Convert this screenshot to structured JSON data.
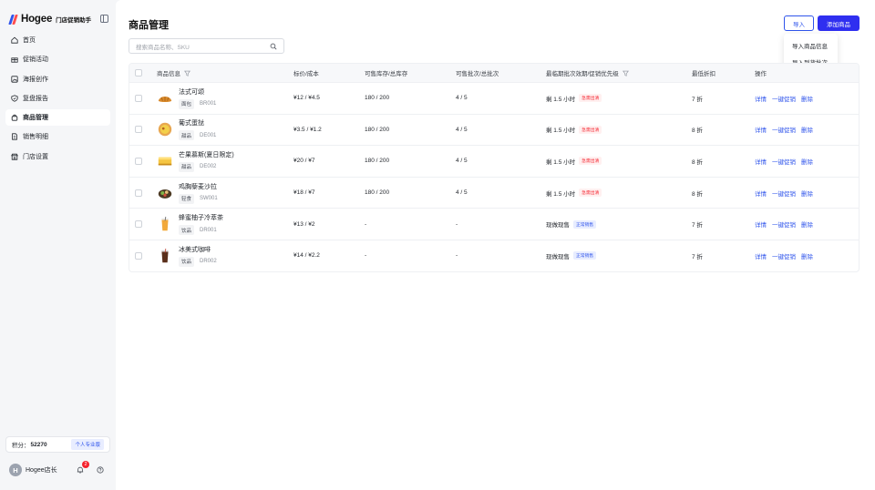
{
  "brand": {
    "logo_text": "Hogee",
    "app_name": "门店促销助手"
  },
  "sidebar": {
    "items": [
      {
        "label": "首页",
        "icon": "home-icon",
        "active": false
      },
      {
        "label": "促销活动",
        "icon": "gift-icon",
        "active": false
      },
      {
        "label": "海报创作",
        "icon": "image-icon",
        "active": false
      },
      {
        "label": "复盘报告",
        "icon": "report-icon",
        "active": false
      },
      {
        "label": "商品管理",
        "icon": "bag-icon",
        "active": true
      },
      {
        "label": "销售明细",
        "icon": "document-icon",
        "active": false
      },
      {
        "label": "门店设置",
        "icon": "store-icon",
        "active": false
      }
    ],
    "points_label": "积分：",
    "points_value": "52270",
    "plan_badge": "个人专业版",
    "user_initial": "H",
    "user_name": "Hogee店长",
    "notification_count": "2"
  },
  "header": {
    "title": "商品管理",
    "import_label": "导入",
    "add_label": "添加商品",
    "dropdown": [
      "导入商品信息",
      "导入到货批次"
    ]
  },
  "search": {
    "placeholder": "搜索商品名称、SKU"
  },
  "table": {
    "columns": [
      "商品信息",
      "标价/成本",
      "可售库存/总库存",
      "可售批次/总批次",
      "最临期批次效期/促销优先级",
      "最低折扣",
      "操作"
    ],
    "actions": [
      "详情",
      "一键促销",
      "删除"
    ],
    "rows": [
      {
        "name": "法式可颂",
        "category": "面包",
        "sku": "BR001",
        "price": "¥12 / ¥4.5",
        "stock": "180 / 200",
        "batches": "4 / 5",
        "expiry": "剩 1.5 小时",
        "status": "急需出清",
        "status_type": "clear",
        "discount": "7 折",
        "img": "croissant"
      },
      {
        "name": "葡式蛋挞",
        "category": "甜品",
        "sku": "DE001",
        "price": "¥3.5 / ¥1.2",
        "stock": "180 / 200",
        "batches": "4 / 5",
        "expiry": "剩 1.5 小时",
        "status": "急需出清",
        "status_type": "clear",
        "discount": "8 折",
        "img": "eggtart"
      },
      {
        "name": "芒果慕斯(夏日限定)",
        "category": "甜品",
        "sku": "DE002",
        "price": "¥20 / ¥7",
        "stock": "180 / 200",
        "batches": "4 / 5",
        "expiry": "剩 1.5 小时",
        "status": "急需出清",
        "status_type": "clear",
        "discount": "8 折",
        "img": "mousse"
      },
      {
        "name": "鸡胸藜麦沙拉",
        "category": "轻食",
        "sku": "SW001",
        "price": "¥18 / ¥7",
        "stock": "180 / 200",
        "batches": "4 / 5",
        "expiry": "剩 1.5 小时",
        "status": "急需出清",
        "status_type": "clear",
        "discount": "8 折",
        "img": "salad"
      },
      {
        "name": "蜂蜜柚子冷萃茶",
        "category": "饮品",
        "sku": "DR001",
        "price": "¥13 / ¥2",
        "stock": "-",
        "batches": "-",
        "expiry": "现做现售",
        "status": "正常销售",
        "status_type": "normal",
        "discount": "7 折",
        "img": "tea"
      },
      {
        "name": "冰美式咖啡",
        "category": "饮品",
        "sku": "DR002",
        "price": "¥14 / ¥2.2",
        "stock": "-",
        "batches": "-",
        "expiry": "现做现售",
        "status": "正常销售",
        "status_type": "normal",
        "discount": "7 折",
        "img": "coffee"
      }
    ]
  },
  "colors": {
    "accent": "#2f54eb",
    "primary_button": "#2f2ff0",
    "danger": "#f5222d"
  }
}
